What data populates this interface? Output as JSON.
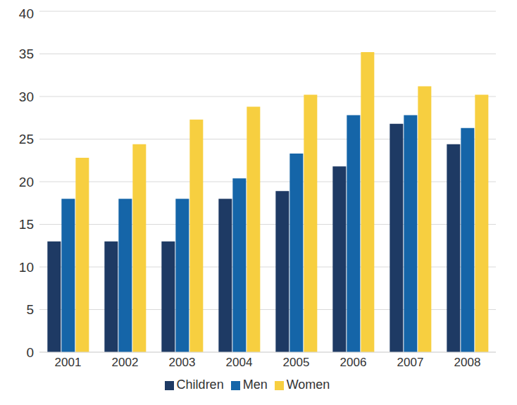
{
  "chart_data": {
    "type": "bar",
    "categories": [
      "2001",
      "2002",
      "2003",
      "2004",
      "2005",
      "2006",
      "2007",
      "2008"
    ],
    "series": [
      {
        "name": "Children",
        "color": "#1e3a64",
        "values": [
          13,
          13,
          13,
          18,
          18.9,
          21.8,
          26.8,
          24.4
        ]
      },
      {
        "name": "Men",
        "color": "#1565a8",
        "values": [
          18,
          18,
          18,
          20.4,
          23.3,
          27.8,
          27.8,
          26.3
        ]
      },
      {
        "name": "Women",
        "color": "#f7cf40",
        "values": [
          22.8,
          24.4,
          27.3,
          28.8,
          30.2,
          35.2,
          31.2,
          30.2
        ]
      }
    ],
    "ylim": [
      0,
      40
    ],
    "yticks": [
      0,
      5,
      10,
      15,
      20,
      25,
      30,
      35,
      40
    ],
    "grid": true,
    "legend": "bottom"
  }
}
